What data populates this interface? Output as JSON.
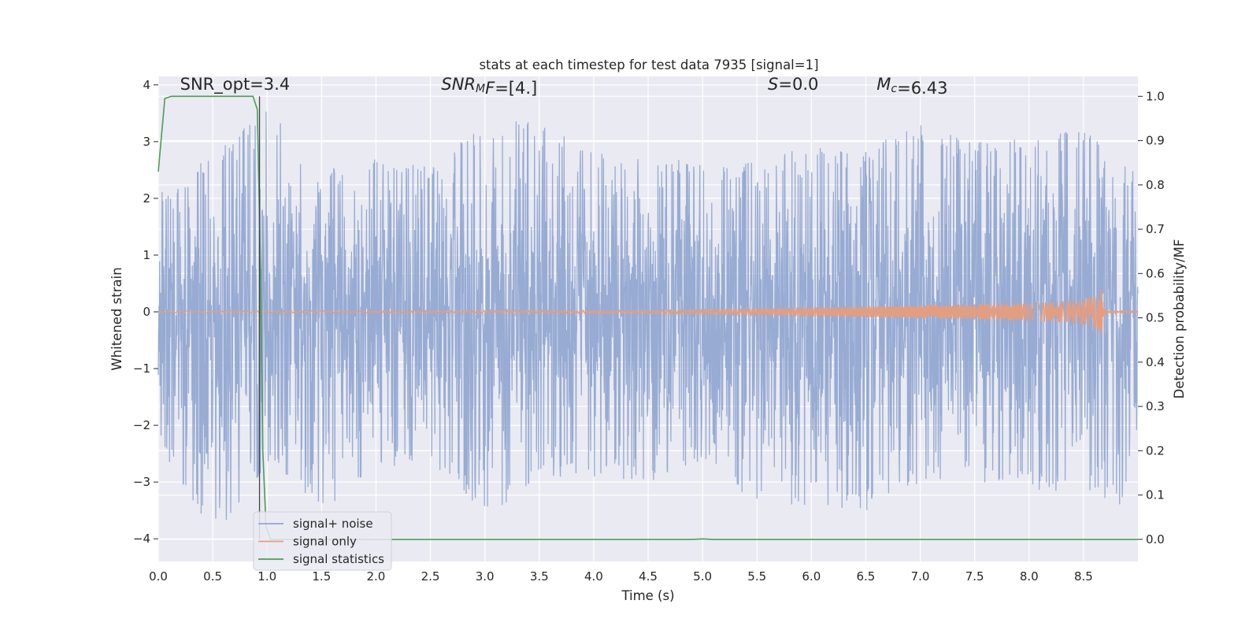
{
  "chart_data": {
    "type": "line",
    "title": "stats at each timestep for test data 7935 [signal=1]",
    "xlabel": "Time (s)",
    "ylabel_left": "Whitened strain",
    "ylabel_right": "Detection probability/MF",
    "xlim": [
      0,
      9.0
    ],
    "ylim_left": [
      -4.4,
      4.15
    ],
    "ylim_right": [
      -0.05,
      1.045
    ],
    "x_ticks": [
      0.0,
      0.5,
      1.0,
      1.5,
      2.0,
      2.5,
      3.0,
      3.5,
      4.0,
      4.5,
      5.0,
      5.5,
      6.0,
      6.5,
      7.0,
      7.5,
      8.0,
      8.5
    ],
    "x_tick_labels": [
      "0.0",
      "0.5",
      "1.0",
      "1.5",
      "2.0",
      "2.5",
      "3.0",
      "3.5",
      "4.0",
      "4.5",
      "5.0",
      "5.5",
      "6.0",
      "6.5",
      "7.0",
      "7.5",
      "8.0",
      "8.5"
    ],
    "y_ticks_left": [
      -4,
      -3,
      -2,
      -1,
      0,
      1,
      2,
      3,
      4
    ],
    "y_tick_labels_left": [
      "−4",
      "−3",
      "−2",
      "−1",
      "0",
      "1",
      "2",
      "3",
      "4"
    ],
    "y_ticks_right": [
      0.0,
      0.1,
      0.2,
      0.3,
      0.4,
      0.5,
      0.6,
      0.7,
      0.8,
      0.9,
      1.0
    ],
    "y_tick_labels_right": [
      "0.0",
      "0.1",
      "0.2",
      "0.3",
      "0.4",
      "0.5",
      "0.6",
      "0.7",
      "0.8",
      "0.9",
      "1.0"
    ],
    "grid": true,
    "legend_position": "lower-left",
    "vline_x": 0.93,
    "annotations": [
      {
        "name": "snr-opt",
        "x": 0.2,
        "y": 4.0,
        "parts": [
          {
            "t": "SNR_opt=3.4",
            "i": false
          }
        ]
      },
      {
        "name": "snr-mf",
        "x": 2.6,
        "y": 4.0,
        "parts": [
          {
            "t": "SNR",
            "i": true
          },
          {
            "t": "M",
            "i": true,
            "sub": true
          },
          {
            "t": "F",
            "i": true
          },
          {
            "t": "=[4.]",
            "i": false
          }
        ]
      },
      {
        "name": "s-stat",
        "x": 5.6,
        "y": 4.0,
        "parts": [
          {
            "t": "S",
            "i": true
          },
          {
            "t": "=0.0",
            "i": false
          }
        ]
      },
      {
        "name": "chirp-mass",
        "x": 6.6,
        "y": 4.0,
        "parts": [
          {
            "t": "M",
            "i": true
          },
          {
            "t": "c",
            "i": true,
            "sub": true
          },
          {
            "t": "=6.43",
            "i": false
          }
        ]
      }
    ],
    "series": [
      {
        "name": "signal+ noise",
        "color": "#92a8d1",
        "axis": "left",
        "kind": "noise",
        "sample_rate": 320,
        "envelope": {
          "x": [
            0.0,
            0.5,
            1.0,
            1.5,
            2.0,
            2.5,
            3.0,
            3.5,
            4.0,
            4.5,
            5.0,
            5.5,
            6.0,
            6.5,
            7.0,
            7.5,
            8.0,
            8.5,
            9.0
          ],
          "upper": [
            2.1,
            2.8,
            3.6,
            2.5,
            2.7,
            2.6,
            3.3,
            3.4,
            2.8,
            2.8,
            2.6,
            2.7,
            2.9,
            2.9,
            3.3,
            3.0,
            3.1,
            3.2,
            2.6
          ],
          "lower": [
            -2.3,
            -4.0,
            -2.7,
            -3.5,
            -2.8,
            -2.6,
            -3.7,
            -2.9,
            -2.9,
            -3.0,
            -2.6,
            -3.4,
            -3.4,
            -3.5,
            -3.0,
            -3.0,
            -3.1,
            -3.3,
            -3.6
          ]
        }
      },
      {
        "name": "signal only",
        "color": "#e39e82",
        "axis": "left",
        "kind": "chirp",
        "envelope": {
          "x": [
            0.0,
            4.5,
            5.5,
            6.5,
            7.0,
            7.5,
            8.0,
            8.3,
            8.5,
            8.6,
            8.65,
            8.67,
            8.7,
            9.0
          ],
          "amp": [
            0.015,
            0.03,
            0.06,
            0.09,
            0.11,
            0.13,
            0.15,
            0.18,
            0.22,
            0.28,
            0.36,
            0.45,
            0.02,
            0.01
          ]
        }
      },
      {
        "name": "signal statistics",
        "color": "#4c9c59",
        "axis": "right",
        "kind": "line",
        "x": [
          0.0,
          0.06,
          0.12,
          0.2,
          0.3,
          0.5,
          0.7,
          0.87,
          0.91,
          0.94,
          0.96,
          0.99,
          1.03,
          1.1,
          1.5,
          2.0,
          3.0,
          4.0,
          4.9,
          5.0,
          5.1,
          6.0,
          7.0,
          8.0,
          9.0
        ],
        "y": [
          0.83,
          0.995,
          1.0,
          1.0,
          1.0,
          1.0,
          1.0,
          1.0,
          0.97,
          0.6,
          0.2,
          0.03,
          0.0,
          0.0,
          0.0,
          0.0,
          0.0,
          0.0,
          0.0,
          0.001,
          0.0,
          0.0,
          0.0,
          0.0,
          0.0
        ]
      }
    ]
  }
}
